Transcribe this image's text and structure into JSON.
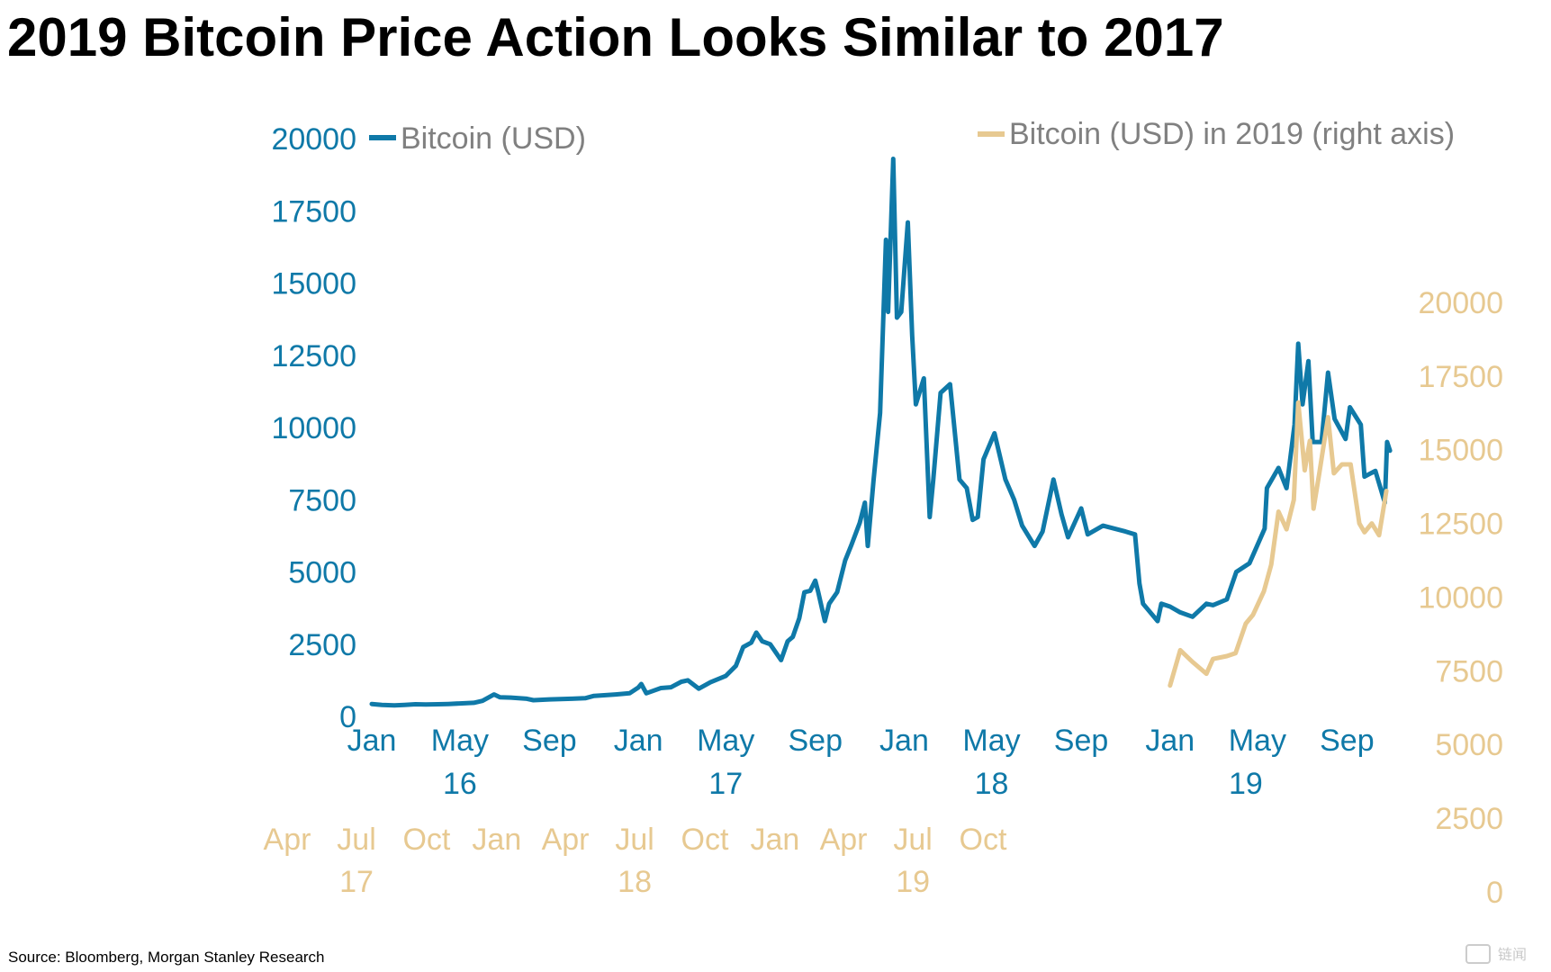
{
  "title": "2019 Bitcoin Price Action Looks Similar to 2017",
  "source": "Source: Bloomberg, Morgan Stanley Research",
  "watermark": "链闻",
  "colors": {
    "primary": "#0f79a8",
    "secondary": "#e7c991"
  },
  "chart_data": {
    "type": "line",
    "legend_placement": "top",
    "grid": false,
    "series": [
      {
        "name": "Bitcoin (USD)",
        "axis": "left",
        "x_axis": "bottom",
        "color": "#0f79a8",
        "points": [
          [
            "2016-01-01",
            430
          ],
          [
            "2016-01-15",
            400
          ],
          [
            "2016-02-01",
            380
          ],
          [
            "2016-02-15",
            395
          ],
          [
            "2016-03-01",
            420
          ],
          [
            "2016-03-15",
            415
          ],
          [
            "2016-04-01",
            420
          ],
          [
            "2016-04-15",
            430
          ],
          [
            "2016-05-01",
            450
          ],
          [
            "2016-05-20",
            470
          ],
          [
            "2016-06-01",
            540
          ],
          [
            "2016-06-17",
            760
          ],
          [
            "2016-06-25",
            660
          ],
          [
            "2016-07-10",
            650
          ],
          [
            "2016-08-01",
            610
          ],
          [
            "2016-08-10",
            560
          ],
          [
            "2016-09-01",
            590
          ],
          [
            "2016-10-01",
            610
          ],
          [
            "2016-10-20",
            630
          ],
          [
            "2016-11-01",
            710
          ],
          [
            "2016-12-01",
            760
          ],
          [
            "2016-12-20",
            800
          ],
          [
            "2017-01-01",
            1000
          ],
          [
            "2017-01-05",
            1120
          ],
          [
            "2017-01-12",
            800
          ],
          [
            "2017-02-01",
            980
          ],
          [
            "2017-02-15",
            1010
          ],
          [
            "2017-03-01",
            1200
          ],
          [
            "2017-03-10",
            1250
          ],
          [
            "2017-03-25",
            960
          ],
          [
            "2017-04-10",
            1180
          ],
          [
            "2017-05-01",
            1400
          ],
          [
            "2017-05-15",
            1750
          ],
          [
            "2017-05-25",
            2400
          ],
          [
            "2017-06-05",
            2550
          ],
          [
            "2017-06-12",
            2900
          ],
          [
            "2017-06-20",
            2600
          ],
          [
            "2017-07-01",
            2500
          ],
          [
            "2017-07-16",
            1950
          ],
          [
            "2017-07-25",
            2600
          ],
          [
            "2017-08-01",
            2750
          ],
          [
            "2017-08-10",
            3400
          ],
          [
            "2017-08-17",
            4300
          ],
          [
            "2017-08-25",
            4350
          ],
          [
            "2017-09-01",
            4700
          ],
          [
            "2017-09-05",
            4300
          ],
          [
            "2017-09-14",
            3300
          ],
          [
            "2017-09-20",
            3900
          ],
          [
            "2017-10-01",
            4300
          ],
          [
            "2017-10-12",
            5400
          ],
          [
            "2017-10-20",
            5900
          ],
          [
            "2017-11-01",
            6700
          ],
          [
            "2017-11-08",
            7400
          ],
          [
            "2017-11-12",
            5900
          ],
          [
            "2017-11-20",
            8200
          ],
          [
            "2017-11-29",
            10500
          ],
          [
            "2017-12-07",
            16500
          ],
          [
            "2017-12-10",
            14000
          ],
          [
            "2017-12-17",
            19300
          ],
          [
            "2017-12-22",
            13800
          ],
          [
            "2017-12-28",
            14000
          ],
          [
            "2018-01-06",
            17100
          ],
          [
            "2018-01-12",
            13200
          ],
          [
            "2018-01-17",
            10800
          ],
          [
            "2018-01-28",
            11700
          ],
          [
            "2018-02-05",
            6900
          ],
          [
            "2018-02-10",
            8200
          ],
          [
            "2018-02-20",
            11200
          ],
          [
            "2018-03-05",
            11500
          ],
          [
            "2018-03-18",
            8200
          ],
          [
            "2018-03-28",
            7900
          ],
          [
            "2018-04-05",
            6800
          ],
          [
            "2018-04-12",
            6900
          ],
          [
            "2018-04-20",
            8900
          ],
          [
            "2018-05-05",
            9800
          ],
          [
            "2018-05-20",
            8200
          ],
          [
            "2018-06-01",
            7500
          ],
          [
            "2018-06-12",
            6600
          ],
          [
            "2018-06-29",
            5900
          ],
          [
            "2018-07-10",
            6400
          ],
          [
            "2018-07-25",
            8200
          ],
          [
            "2018-08-05",
            7000
          ],
          [
            "2018-08-14",
            6200
          ],
          [
            "2018-09-01",
            7200
          ],
          [
            "2018-09-10",
            6300
          ],
          [
            "2018-10-01",
            6600
          ],
          [
            "2018-11-01",
            6400
          ],
          [
            "2018-11-14",
            6300
          ],
          [
            "2018-11-20",
            4600
          ],
          [
            "2018-11-25",
            3900
          ],
          [
            "2018-12-15",
            3300
          ],
          [
            "2018-12-20",
            3900
          ],
          [
            "2019-01-01",
            3800
          ],
          [
            "2019-01-15",
            3600
          ],
          [
            "2019-02-01",
            3450
          ],
          [
            "2019-02-20",
            3900
          ],
          [
            "2019-03-01",
            3850
          ],
          [
            "2019-03-20",
            4050
          ],
          [
            "2019-04-02",
            5000
          ],
          [
            "2019-04-20",
            5300
          ],
          [
            "2019-05-11",
            6500
          ],
          [
            "2019-05-14",
            7900
          ],
          [
            "2019-05-30",
            8600
          ],
          [
            "2019-06-10",
            7900
          ],
          [
            "2019-06-21",
            10100
          ],
          [
            "2019-06-26",
            12900
          ],
          [
            "2019-07-02",
            10800
          ],
          [
            "2019-07-10",
            12300
          ],
          [
            "2019-07-16",
            9500
          ],
          [
            "2019-07-28",
            9500
          ],
          [
            "2019-08-06",
            11900
          ],
          [
            "2019-08-15",
            10300
          ],
          [
            "2019-08-30",
            9600
          ],
          [
            "2019-09-05",
            10700
          ],
          [
            "2019-09-20",
            10100
          ],
          [
            "2019-09-25",
            8300
          ],
          [
            "2019-10-10",
            8500
          ],
          [
            "2019-10-23",
            7400
          ],
          [
            "2019-10-26",
            9500
          ],
          [
            "2019-10-30",
            9200
          ]
        ]
      },
      {
        "name": "Bitcoin (USD) in 2019 (right axis)",
        "axis": "right",
        "x_axis": "secondary",
        "color": "#e7c991",
        "points": [
          [
            "2019-01-01",
            7000
          ],
          [
            "2019-01-15",
            8200
          ],
          [
            "2019-02-01",
            7800
          ],
          [
            "2019-02-20",
            7400
          ],
          [
            "2019-03-01",
            7900
          ],
          [
            "2019-03-20",
            8000
          ],
          [
            "2019-04-01",
            8100
          ],
          [
            "2019-04-15",
            9100
          ],
          [
            "2019-04-25",
            9400
          ],
          [
            "2019-05-10",
            10200
          ],
          [
            "2019-05-20",
            11100
          ],
          [
            "2019-05-30",
            12900
          ],
          [
            "2019-06-10",
            12300
          ],
          [
            "2019-06-20",
            13300
          ],
          [
            "2019-06-26",
            16600
          ],
          [
            "2019-07-05",
            14300
          ],
          [
            "2019-07-12",
            15300
          ],
          [
            "2019-07-17",
            13000
          ],
          [
            "2019-07-25",
            14200
          ],
          [
            "2019-08-06",
            16100
          ],
          [
            "2019-08-14",
            14200
          ],
          [
            "2019-08-25",
            14500
          ],
          [
            "2019-09-06",
            14500
          ],
          [
            "2019-09-18",
            12500
          ],
          [
            "2019-09-25",
            12200
          ],
          [
            "2019-10-05",
            12500
          ],
          [
            "2019-10-15",
            12100
          ],
          [
            "2019-10-25",
            13600
          ]
        ]
      }
    ],
    "yaxis_left": {
      "ylim": [
        0,
        20000
      ],
      "ticks": [
        "0",
        "2500",
        "5000",
        "7500",
        "10000",
        "12500",
        "15000",
        "17500",
        "20000"
      ],
      "color": "#0f79a8"
    },
    "yaxis_right": {
      "ylim": [
        0,
        22500
      ],
      "ticks": [
        "0",
        "2500",
        "5000",
        "7500",
        "10000",
        "12500",
        "15000",
        "17500",
        "20000"
      ],
      "color": "#e7c991"
    },
    "xaxis_bottom": {
      "range": [
        "2016-01-01",
        "2019-12-01"
      ],
      "color": "#0f79a8",
      "months": [
        {
          "label": "Jan",
          "date": "2016-01-01"
        },
        {
          "label": "May",
          "date": "2016-05-01"
        },
        {
          "label": "Sep",
          "date": "2016-09-01"
        },
        {
          "label": "Jan",
          "date": "2017-01-01"
        },
        {
          "label": "May",
          "date": "2017-05-01"
        },
        {
          "label": "Sep",
          "date": "2017-09-01"
        },
        {
          "label": "Jan",
          "date": "2018-01-01"
        },
        {
          "label": "May",
          "date": "2018-05-01"
        },
        {
          "label": "Sep",
          "date": "2018-09-01"
        },
        {
          "label": "Jan",
          "date": "2019-01-01"
        },
        {
          "label": "May",
          "date": "2019-05-01"
        },
        {
          "label": "Sep",
          "date": "2019-09-01"
        }
      ],
      "years": [
        {
          "label": "16",
          "date": "2016-05-01"
        },
        {
          "label": "17",
          "date": "2017-05-01"
        },
        {
          "label": "18",
          "date": "2018-05-01"
        },
        {
          "label": "19",
          "date": "2019-04-15"
        }
      ]
    },
    "xaxis_secondary": {
      "color": "#e7c991",
      "months": [
        {
          "label": "Apr",
          "date": "2017-04-01"
        },
        {
          "label": "Jul",
          "date": "2017-07-01"
        },
        {
          "label": "Oct",
          "date": "2017-10-01"
        },
        {
          "label": "Jan",
          "date": "2018-01-01"
        },
        {
          "label": "Apr",
          "date": "2018-04-01"
        },
        {
          "label": "Jul",
          "date": "2018-07-01"
        },
        {
          "label": "Oct",
          "date": "2018-10-01"
        },
        {
          "label": "Jan",
          "date": "2019-01-01"
        },
        {
          "label": "Apr",
          "date": "2019-04-01"
        },
        {
          "label": "Jul",
          "date": "2019-07-01"
        },
        {
          "label": "Oct",
          "date": "2019-10-01"
        }
      ],
      "years": [
        {
          "label": "17",
          "date": "2017-07-01"
        },
        {
          "label": "18",
          "date": "2018-07-01"
        },
        {
          "label": "19",
          "date": "2019-07-01"
        }
      ]
    }
  }
}
